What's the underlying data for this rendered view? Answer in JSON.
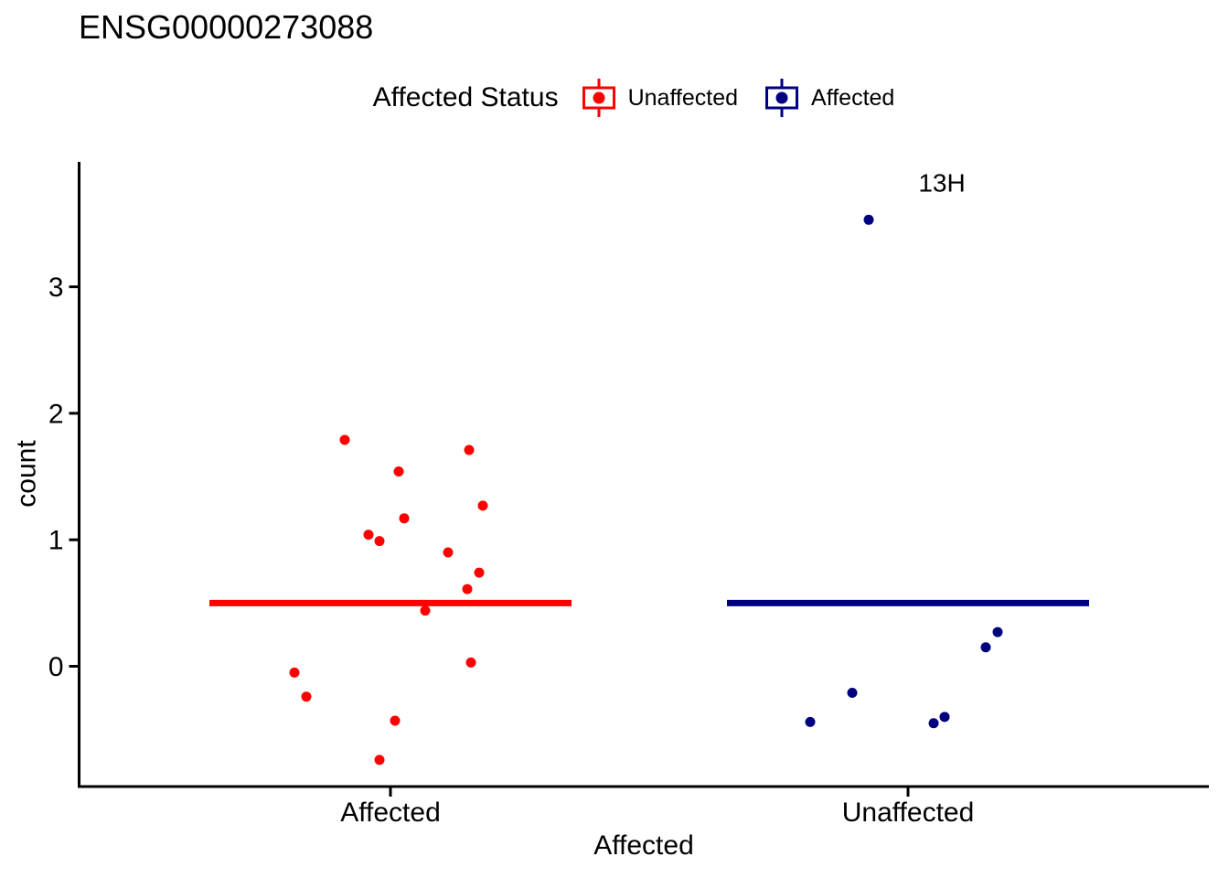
{
  "legend": {
    "title": "Affected Status",
    "items": [
      {
        "label": "Unaffected",
        "color": "#FF0000"
      },
      {
        "label": "Affected",
        "color": "#000080"
      }
    ]
  },
  "annotation_label": "13H",
  "colors": {
    "axis": "#000000",
    "text": "#000000",
    "red": "#FF0000",
    "navy": "#000080"
  },
  "chart_data": {
    "type": "scatter",
    "title": "ENSG00000273088",
    "xlabel": "Affected",
    "ylabel": "count",
    "categories": [
      "Affected",
      "Unaffected"
    ],
    "yticks": [
      0,
      1,
      2,
      3
    ],
    "ylim": [
      -0.95,
      4.0
    ],
    "grid": false,
    "legend_position": "top",
    "legend_title": "Affected Status",
    "series": [
      {
        "name": "Unaffected",
        "color": "#FF0000",
        "category": "Affected",
        "center_line": 0.5,
        "points": [
          {
            "dx": -50,
            "v": 1.79
          },
          {
            "dx": 86,
            "v": 1.71
          },
          {
            "dx": 9,
            "v": 1.54
          },
          {
            "dx": 101,
            "v": 1.27
          },
          {
            "dx": 15,
            "v": 1.17
          },
          {
            "dx": -24,
            "v": 1.04
          },
          {
            "dx": -12,
            "v": 0.99
          },
          {
            "dx": 63,
            "v": 0.9
          },
          {
            "dx": 97,
            "v": 0.74
          },
          {
            "dx": 84,
            "v": 0.61
          },
          {
            "dx": 38,
            "v": 0.44
          },
          {
            "dx": 88,
            "v": 0.03
          },
          {
            "dx": -105,
            "v": -0.05
          },
          {
            "dx": -92,
            "v": -0.24
          },
          {
            "dx": 5,
            "v": -0.43
          },
          {
            "dx": -12,
            "v": -0.74
          }
        ]
      },
      {
        "name": "Affected",
        "color": "#000080",
        "category": "Unaffected",
        "center_line": 0.5,
        "points": [
          {
            "dx": -43,
            "v": 3.53,
            "label": "13H"
          },
          {
            "dx": 98,
            "v": 0.27
          },
          {
            "dx": 85,
            "v": 0.15
          },
          {
            "dx": -61,
            "v": -0.21
          },
          {
            "dx": 40,
            "v": -0.4
          },
          {
            "dx": -107,
            "v": -0.44
          },
          {
            "dx": 28,
            "v": -0.45
          }
        ]
      }
    ]
  }
}
